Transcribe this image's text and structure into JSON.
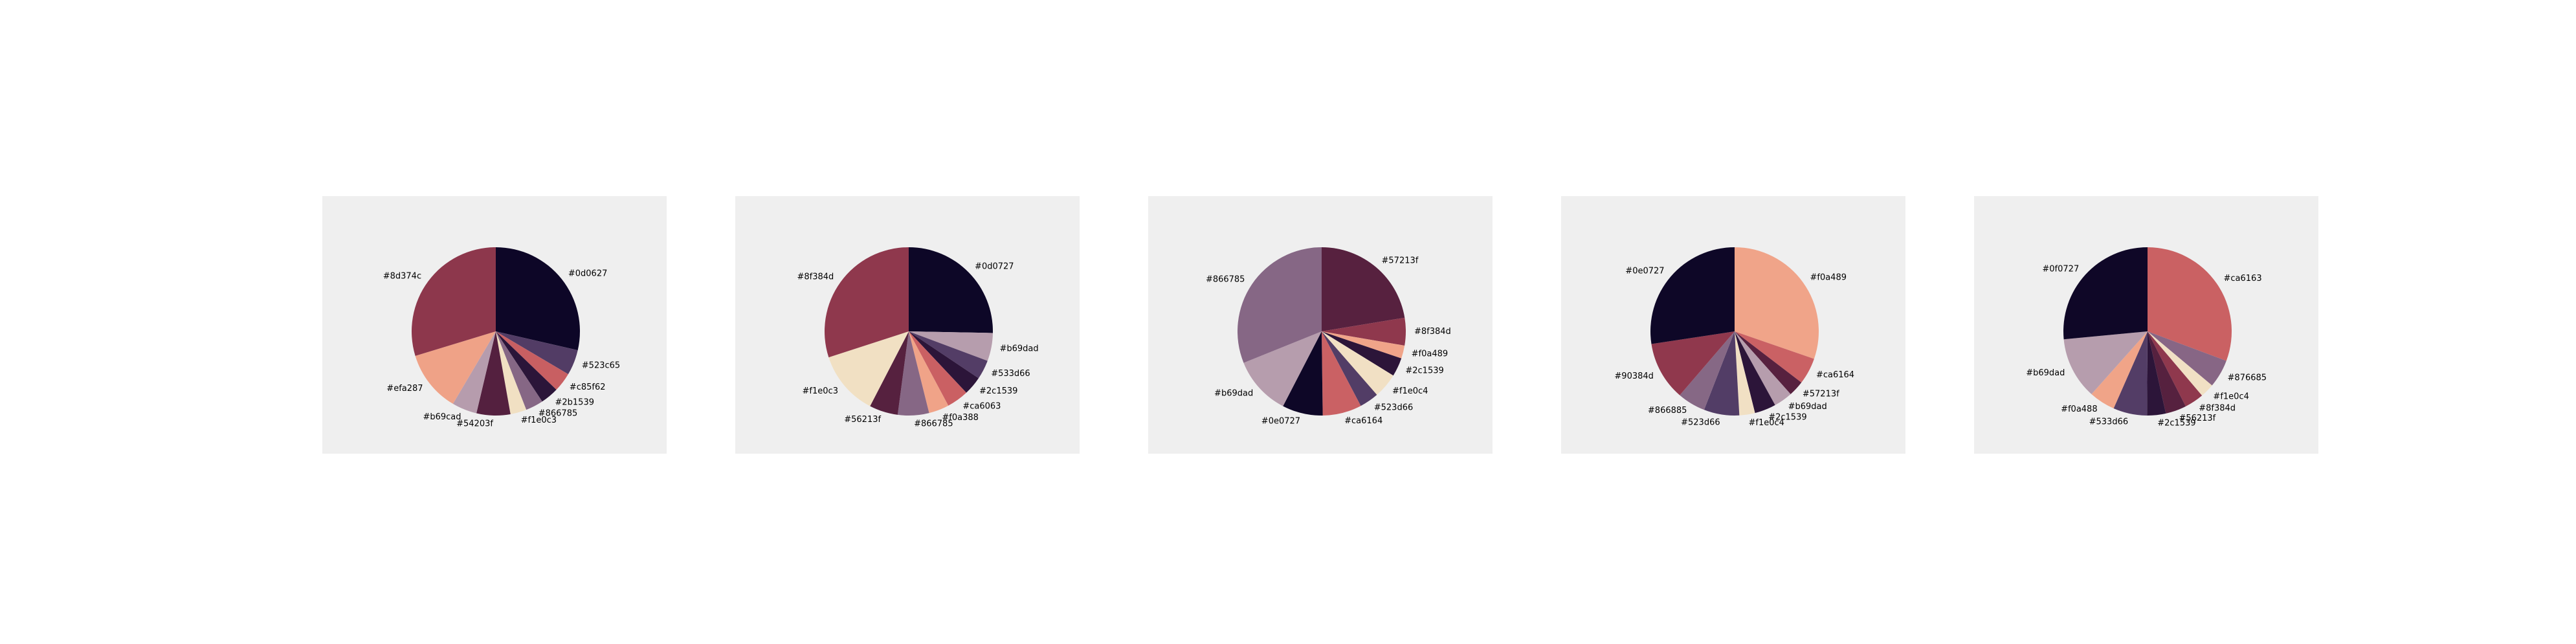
{
  "chart_data": [
    {
      "type": "pie",
      "slices": [
        {
          "label": "#0d0627",
          "value": 28.6,
          "color": "#0d0627"
        },
        {
          "label": "#523c65",
          "value": 4.9,
          "color": "#523c65"
        },
        {
          "label": "#c85f62",
          "value": 3.7,
          "color": "#c85f62"
        },
        {
          "label": "#2b1539",
          "value": 3.5,
          "color": "#2b1539"
        },
        {
          "label": "#866785",
          "value": 3.4,
          "color": "#866785"
        },
        {
          "label": "#f1e0c3",
          "value": 3.1,
          "color": "#f1e0c3"
        },
        {
          "label": "#54203f",
          "value": 6.5,
          "color": "#54203f"
        },
        {
          "label": "#b69cad",
          "value": 4.8,
          "color": "#b69cad"
        },
        {
          "label": "#efa287",
          "value": 11.8,
          "color": "#efa287"
        },
        {
          "label": "#8d374c",
          "value": 29.7,
          "color": "#8d374c"
        }
      ]
    },
    {
      "type": "pie",
      "slices": [
        {
          "label": "#0d0727",
          "value": 25.3,
          "color": "#0d0727"
        },
        {
          "label": "#b69dad",
          "value": 5.4,
          "color": "#b69dad"
        },
        {
          "label": "#533d66",
          "value": 3.7,
          "color": "#533d66"
        },
        {
          "label": "#2c1539",
          "value": 3.6,
          "color": "#2c1539"
        },
        {
          "label": "#ca6063",
          "value": 4.2,
          "color": "#ca6063"
        },
        {
          "label": "#f0a388",
          "value": 3.9,
          "color": "#f0a388"
        },
        {
          "label": "#866785",
          "value": 6.0,
          "color": "#866785"
        },
        {
          "label": "#56213f",
          "value": 5.5,
          "color": "#56213f"
        },
        {
          "label": "#f1e0c3",
          "value": 12.4,
          "color": "#f1e0c3"
        },
        {
          "label": "#8f384d",
          "value": 30.0,
          "color": "#8f384d"
        }
      ]
    },
    {
      "type": "pie",
      "slices": [
        {
          "label": "#57213f",
          "value": 22.4,
          "color": "#57213f"
        },
        {
          "label": "#8f384d",
          "value": 5.3,
          "color": "#8f384d"
        },
        {
          "label": "#f0a489",
          "value": 2.5,
          "color": "#f0a489"
        },
        {
          "label": "#2c1539",
          "value": 3.6,
          "color": "#2c1539"
        },
        {
          "label": "#f1e0c4",
          "value": 4.8,
          "color": "#f1e0c4"
        },
        {
          "label": "#523d66",
          "value": 3.7,
          "color": "#523d66"
        },
        {
          "label": "#ca6164",
          "value": 7.5,
          "color": "#ca6164"
        },
        {
          "label": "#0e0727",
          "value": 7.8,
          "color": "#0e0727"
        },
        {
          "label": "#b69dad",
          "value": 11.3,
          "color": "#b69dad"
        },
        {
          "label": "#866785",
          "value": 31.1,
          "color": "#866785"
        }
      ]
    },
    {
      "type": "pie",
      "slices": [
        {
          "label": "#f0a489",
          "value": 30.3,
          "color": "#f0a489"
        },
        {
          "label": "#ca6164",
          "value": 5.1,
          "color": "#ca6164"
        },
        {
          "label": "#57213f",
          "value": 3.0,
          "color": "#57213f"
        },
        {
          "label": "#b69dad",
          "value": 3.6,
          "color": "#b69dad"
        },
        {
          "label": "#2c1539",
          "value": 4.1,
          "color": "#2c1539"
        },
        {
          "label": "#f1e0c4",
          "value": 3.0,
          "color": "#f1e0c4"
        },
        {
          "label": "#523d66",
          "value": 6.8,
          "color": "#523d66"
        },
        {
          "label": "#866885",
          "value": 5.4,
          "color": "#866885"
        },
        {
          "label": "#90384d",
          "value": 11.3,
          "color": "#90384d"
        },
        {
          "label": "#0e0727",
          "value": 27.4,
          "color": "#0e0727"
        }
      ]
    },
    {
      "type": "pie",
      "slices": [
        {
          "label": "#ca6163",
          "value": 30.7,
          "color": "#ca6163"
        },
        {
          "label": "#876685",
          "value": 5.4,
          "color": "#876685"
        },
        {
          "label": "#f1e0c4",
          "value": 2.7,
          "color": "#f1e0c4"
        },
        {
          "label": "#8f384d",
          "value": 3.7,
          "color": "#8f384d"
        },
        {
          "label": "#56213f",
          "value": 4.0,
          "color": "#56213f"
        },
        {
          "label": "#2c1539",
          "value": 3.6,
          "color": "#2c1539"
        },
        {
          "label": "#533d66",
          "value": 6.5,
          "color": "#533d66"
        },
        {
          "label": "#f0a488",
          "value": 5.0,
          "color": "#f0a488"
        },
        {
          "label": "#b69dad",
          "value": 11.9,
          "color": "#b69dad"
        },
        {
          "label": "#0f0727",
          "value": 26.5,
          "color": "#0f0727"
        }
      ]
    }
  ]
}
